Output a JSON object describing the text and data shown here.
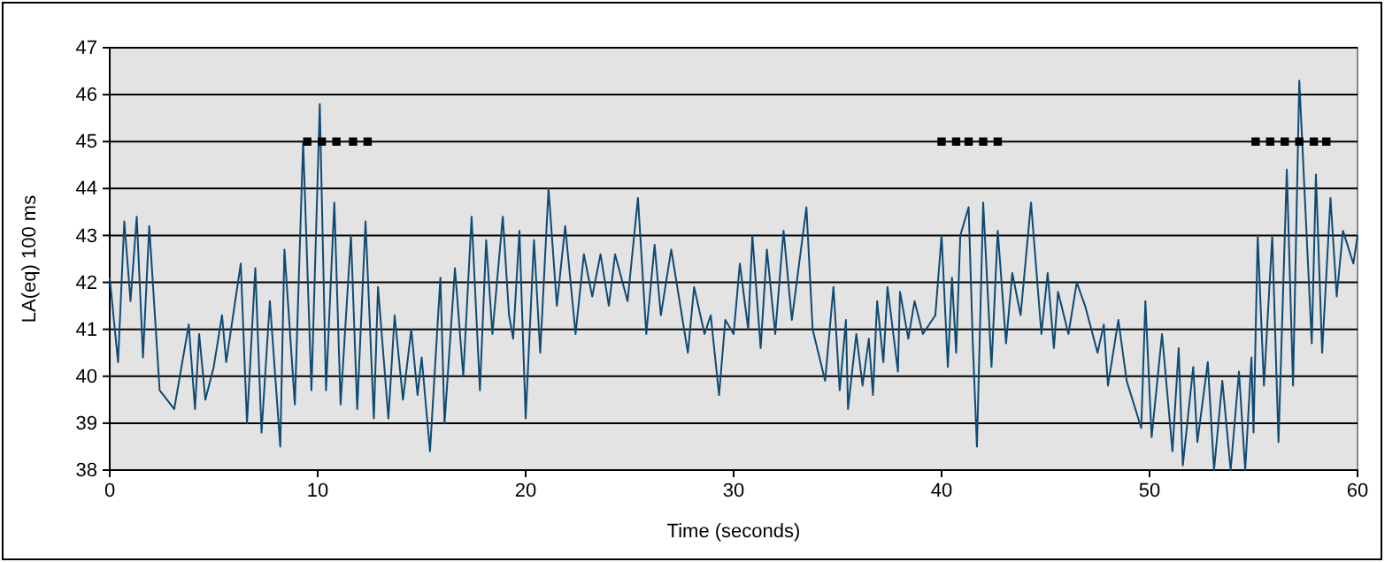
{
  "chart_data": {
    "type": "line",
    "xlabel": "Time (seconds)",
    "ylabel": "LA(eq) 100 ms",
    "xlim": [
      0,
      60
    ],
    "xticks": [
      0,
      10,
      20,
      30,
      40,
      50,
      60
    ],
    "ylim": [
      38,
      47
    ],
    "yticks": [
      38,
      39,
      40,
      41,
      42,
      43,
      44,
      45,
      46,
      47
    ],
    "grid": "y",
    "series": [
      {
        "marker": "none",
        "color": "#0f4a73",
        "x": [
          0,
          0.4,
          0.7,
          1.0,
          1.3,
          1.6,
          1.9,
          2.4,
          3.1,
          3.8,
          4.1,
          4.3,
          4.6,
          5.0,
          5.4,
          5.6,
          6.3,
          6.6,
          7.0,
          7.3,
          7.7,
          8.2,
          8.4,
          8.9,
          9.3,
          9.7,
          10.1,
          10.4,
          10.8,
          11.1,
          11.6,
          11.9,
          12.3,
          12.7,
          12.9,
          13.4,
          13.7,
          14.1,
          14.5,
          14.8,
          15.0,
          15.4,
          15.9,
          16.1,
          16.6,
          17.0,
          17.4,
          17.8,
          18.1,
          18.4,
          18.9,
          19.2,
          19.4,
          19.7,
          20.0,
          20.4,
          20.7,
          21.1,
          21.5,
          21.9,
          22.4,
          22.8,
          23.2,
          23.6,
          24.0,
          24.3,
          24.9,
          25.4,
          25.8,
          26.2,
          26.5,
          27.0,
          27.8,
          28.1,
          28.6,
          28.9,
          29.3,
          29.6,
          30.0,
          30.3,
          30.7,
          30.9,
          31.3,
          31.6,
          32.0,
          32.4,
          32.8,
          33.5,
          33.8,
          34.4,
          34.8,
          35.1,
          35.4,
          35.5,
          35.9,
          36.2,
          36.5,
          36.7,
          36.9,
          37.2,
          37.4,
          37.9,
          38.0,
          38.4,
          38.7,
          39.1,
          39.7,
          40.0,
          40.3,
          40.5,
          40.7,
          40.9,
          41.3,
          41.5,
          41.7,
          42.0,
          42.4,
          42.7,
          43.1,
          43.4,
          43.8,
          44.3,
          44.8,
          45.1,
          45.4,
          45.6,
          46.1,
          46.5,
          46.9,
          47.5,
          47.8,
          48.0,
          48.5,
          48.9,
          49.6,
          49.8,
          50.1,
          50.6,
          51.1,
          51.4,
          51.6,
          52.1,
          52.3,
          52.8,
          53.1,
          53.5,
          53.9,
          54.3,
          54.6,
          54.9,
          55.0,
          55.2,
          55.5,
          55.9,
          56.2,
          56.6,
          56.9,
          57.2,
          57.8,
          58.0,
          58.3,
          58.7,
          59.0,
          59.3,
          59.8,
          60.0
        ],
        "values": [
          42.1,
          40.3,
          43.3,
          41.6,
          43.4,
          40.4,
          43.2,
          39.7,
          39.3,
          41.1,
          39.3,
          40.9,
          39.5,
          40.2,
          41.3,
          40.3,
          42.4,
          39.0,
          42.3,
          38.8,
          41.6,
          38.5,
          42.7,
          39.4,
          45.0,
          39.7,
          45.8,
          39.7,
          43.7,
          39.4,
          43.0,
          39.3,
          43.3,
          39.1,
          41.9,
          39.1,
          41.3,
          39.5,
          41.0,
          39.6,
          40.4,
          38.4,
          42.1,
          39.0,
          42.3,
          40.0,
          43.4,
          39.7,
          42.9,
          40.9,
          43.4,
          41.3,
          40.8,
          43.1,
          39.1,
          42.9,
          40.5,
          44.0,
          41.5,
          43.2,
          40.9,
          42.6,
          41.7,
          42.6,
          41.5,
          42.6,
          41.6,
          43.8,
          40.9,
          42.8,
          41.3,
          42.7,
          40.5,
          41.9,
          40.9,
          41.3,
          39.6,
          41.2,
          40.9,
          42.4,
          41.0,
          43.0,
          40.6,
          42.7,
          40.9,
          43.1,
          41.2,
          43.6,
          41.0,
          39.9,
          41.9,
          39.7,
          41.2,
          39.3,
          40.9,
          39.8,
          40.8,
          39.6,
          41.6,
          40.3,
          41.9,
          40.1,
          41.8,
          40.8,
          41.6,
          40.9,
          41.3,
          43.0,
          40.2,
          42.1,
          40.5,
          43.0,
          43.6,
          40.7,
          38.5,
          43.7,
          40.2,
          43.1,
          40.7,
          42.2,
          41.3,
          43.7,
          40.9,
          42.2,
          40.6,
          41.8,
          40.9,
          42.0,
          41.5,
          40.5,
          41.1,
          39.8,
          41.2,
          39.9,
          38.9,
          41.6,
          38.7,
          40.9,
          38.4,
          40.6,
          38.1,
          40.2,
          38.6,
          40.3,
          38.0,
          39.9,
          38.0,
          40.1,
          38.0,
          40.4,
          38.8,
          43.0,
          39.8,
          43.0,
          38.6,
          44.4,
          39.8,
          46.3,
          40.7,
          44.3,
          40.5,
          43.8,
          41.7,
          43.1,
          42.4,
          43.0
        ]
      },
      {
        "type": "scatter",
        "marker": "square",
        "color": "#000000",
        "x": [
          9.5,
          10.2,
          10.9,
          11.7,
          12.4,
          40.0,
          40.7,
          41.3,
          42.0,
          42.7,
          55.1,
          55.8,
          56.5,
          57.2,
          57.9,
          58.5
        ],
        "values": [
          45,
          45,
          45,
          45,
          45,
          45,
          45,
          45,
          45,
          45,
          45,
          45,
          45,
          45,
          45,
          45
        ]
      }
    ]
  }
}
